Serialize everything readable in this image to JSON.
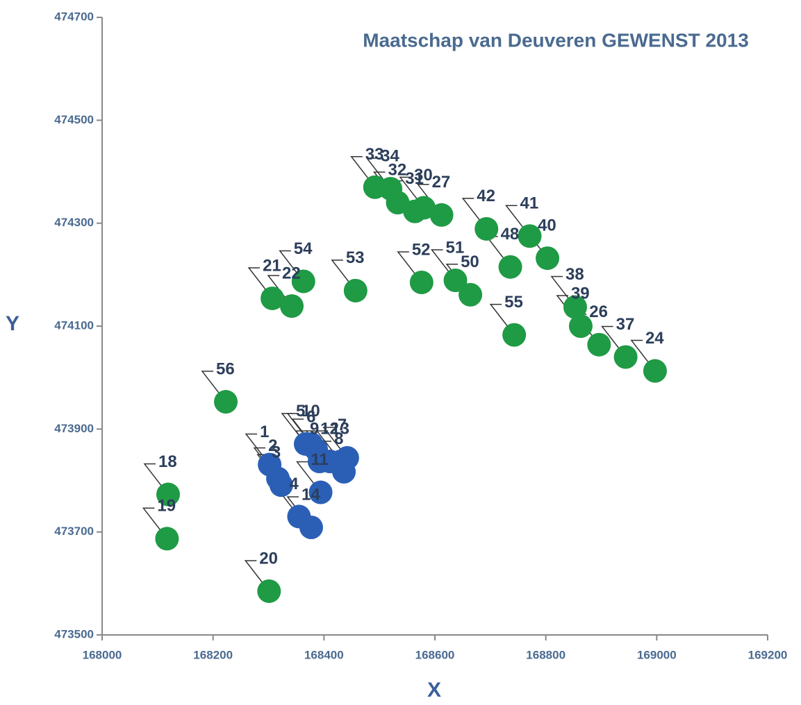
{
  "chart_data": {
    "type": "scatter",
    "title": "Maatschap van Deuveren GEWENST 2013",
    "x_label": "X",
    "y_label": "Y",
    "xlim": [
      168000,
      169200
    ],
    "xticks": [
      168000,
      168200,
      168400,
      168600,
      168800,
      169000,
      169200
    ],
    "ylim": [
      473500,
      474700
    ],
    "yticks": [
      473500,
      473700,
      473900,
      474100,
      474300,
      474500,
      474700
    ],
    "grid": false,
    "series": [
      {
        "name": "groen",
        "color": "#1f9a45",
        "labels": [
          "18",
          "19",
          "20",
          "56",
          "21",
          "22",
          "54",
          "53",
          "52",
          "33",
          "34",
          "32",
          "31",
          "30",
          "27",
          "41",
          "40",
          "42",
          "51",
          "50",
          "48",
          "55",
          "38",
          "39",
          "26",
          "37",
          "24"
        ],
        "x": [
          168119,
          168117,
          168301,
          168223,
          168307,
          168342,
          168363,
          168457,
          168576,
          168492,
          168520,
          168533,
          168564,
          168580,
          168612,
          168771,
          168803,
          168693,
          168637,
          168664,
          168736,
          168743,
          168853,
          168863,
          168896,
          168944,
          168997
        ],
        "y": [
          473773,
          473687,
          473585,
          473953,
          474154,
          474139,
          474187,
          474169,
          474185,
          474370,
          474367,
          474340,
          474323,
          474330,
          474316,
          474275,
          474232,
          474289,
          474189,
          474161,
          474215,
          474083,
          474137,
          474100,
          474064,
          474040,
          474013
        ]
      },
      {
        "name": "blauw",
        "color": "#2a5fb5",
        "labels": [
          "1",
          "2",
          "3",
          "4",
          "5",
          "10",
          "6",
          "9",
          "11",
          "12",
          "13",
          "8",
          "7",
          "14"
        ],
        "x": [
          168302,
          168317,
          168323,
          168355,
          168367,
          168377,
          168386,
          168392,
          168394,
          168411,
          168430,
          168436,
          168442,
          168377
        ],
        "y": [
          473831,
          473804,
          473791,
          473730,
          473871,
          473871,
          473860,
          473837,
          473777,
          473837,
          473837,
          473817,
          473844,
          473709
        ]
      }
    ]
  }
}
